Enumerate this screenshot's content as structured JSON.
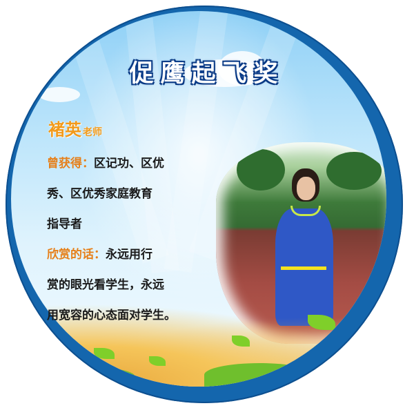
{
  "title": "促鹰起飞奖",
  "teacher": {
    "name": "褚英",
    "honorific": "老师"
  },
  "content": {
    "line1_label": "曾获得：",
    "line1_text": "区记功、区优",
    "line2": "秀、区优秀家庭教育",
    "line3": "指导者",
    "line4_label": "欣赏的话：",
    "line4_text": "永远用行",
    "line5": "赏的眼光看学生，永远",
    "line6": "用宽容的心态面对学生。"
  },
  "colors": {
    "ring": "#1466ad",
    "label_orange": "#e6801a",
    "name_orange": "#f29a1a",
    "sky_top": "#8fd0f6"
  }
}
